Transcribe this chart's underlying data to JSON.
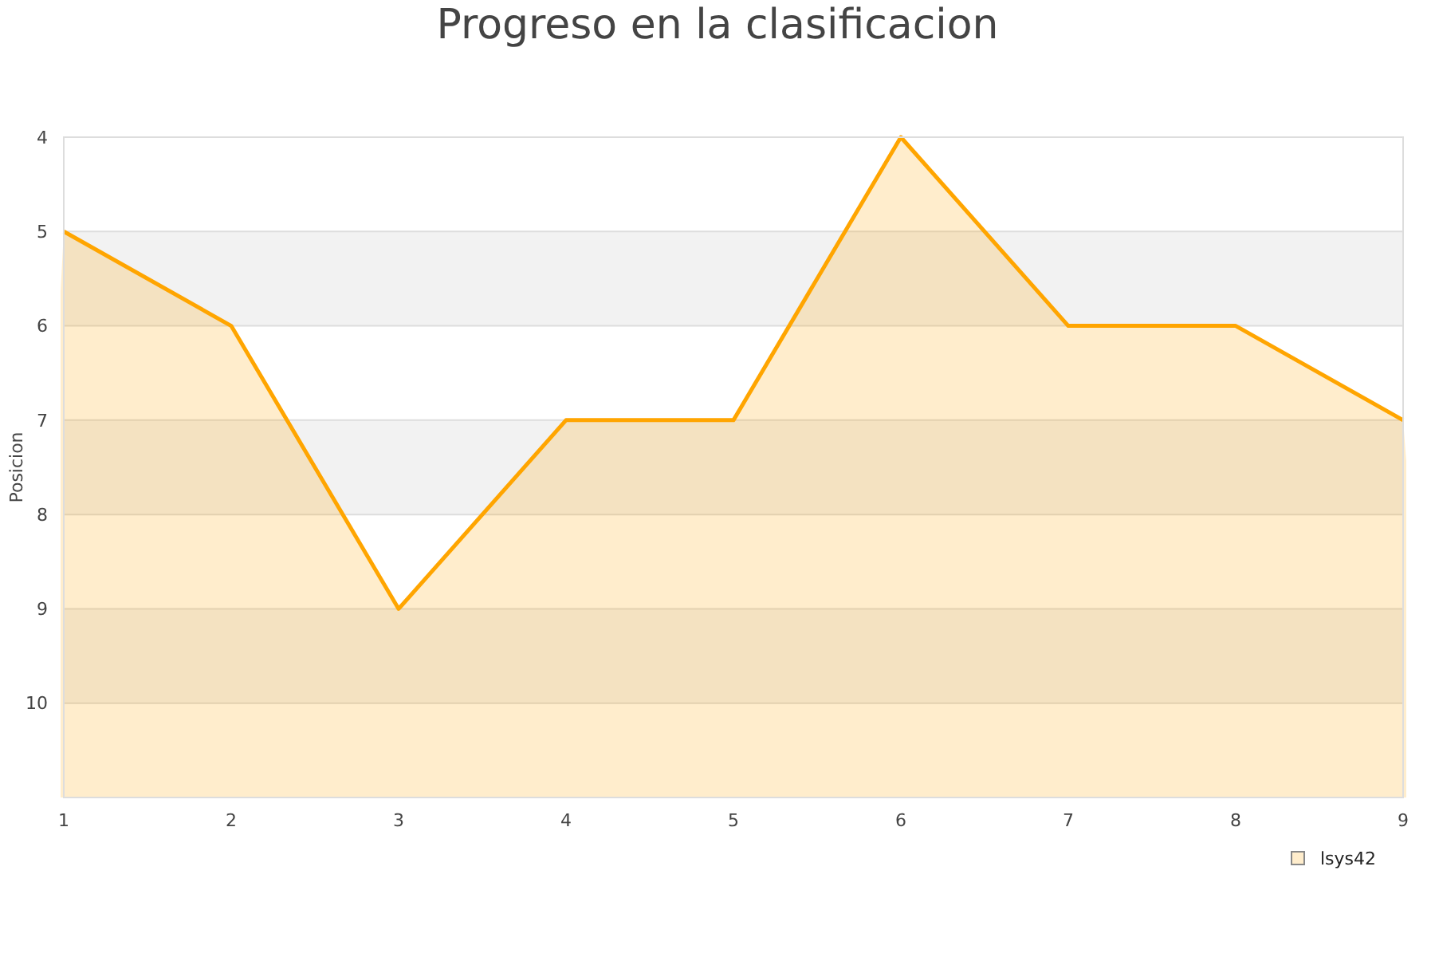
{
  "chart_data": {
    "type": "area",
    "title": "Progreso en la clasificacion",
    "ylabel": "Posicion",
    "x": [
      1,
      2,
      3,
      4,
      5,
      6,
      7,
      8,
      9
    ],
    "series": [
      {
        "name": "lsys42",
        "color": "#ffa500",
        "values": [
          5,
          6,
          9,
          7,
          7,
          4,
          6,
          6,
          7
        ]
      }
    ],
    "xlim": [
      1,
      9
    ],
    "xticks": [
      1,
      2,
      3,
      4,
      5,
      6,
      7,
      8,
      9
    ],
    "ylim": [
      11,
      4
    ],
    "yticks": [
      4,
      5,
      6,
      7,
      8,
      9,
      10
    ],
    "bands": [
      {
        "axis": "y",
        "from": 5,
        "to": 6,
        "color": "#f2f2f2"
      },
      {
        "axis": "y",
        "from": 7,
        "to": 8,
        "color": "#f2f2f2"
      },
      {
        "axis": "y",
        "from": 9,
        "to": 10,
        "color": "#f2f2f2"
      }
    ],
    "grid": "y",
    "legend": "bottom right"
  }
}
